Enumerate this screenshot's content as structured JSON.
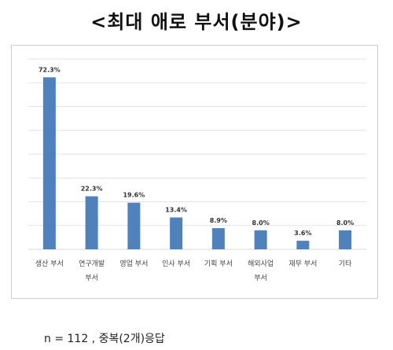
{
  "title": "<최대 애로 부서(분야)>",
  "note": "n = 112 , 중복(2개)응답",
  "chart_data": {
    "type": "bar",
    "title": "<최대 애로 부서(분야)>",
    "categories": [
      [
        "생산 부서"
      ],
      [
        "연구개발",
        "부서"
      ],
      [
        "영업 부서"
      ],
      [
        "인사 부서"
      ],
      [
        "기획 부서"
      ],
      [
        "해외사업",
        "부서"
      ],
      [
        "재무 부서"
      ],
      [
        "기타"
      ]
    ],
    "values": [
      72.3,
      22.3,
      19.6,
      13.4,
      8.9,
      8.0,
      3.6,
      8.0
    ],
    "data_labels": [
      "72.3%",
      "22.3%",
      "19.6%",
      "13.4%",
      "8.9%",
      "8.0%",
      "3.6%",
      "8.0%"
    ],
    "ylim": [
      0,
      80
    ],
    "grid": true,
    "bar_color": "#4F81BD",
    "grid_color": "#d9d9d9"
  }
}
